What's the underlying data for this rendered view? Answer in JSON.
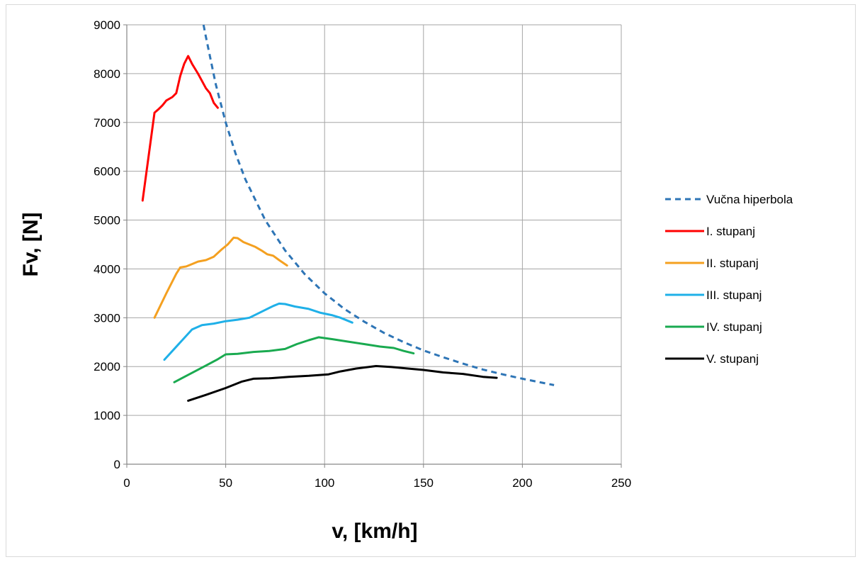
{
  "chart_data": {
    "type": "line",
    "xlabel": "v, [km/h]",
    "ylabel": "Fv, [N]",
    "xlim": [
      0,
      250
    ],
    "ylim": [
      0,
      9000
    ],
    "xticks": [
      "0",
      "50",
      "100",
      "150",
      "200",
      "250"
    ],
    "yticks": [
      "0",
      "1000",
      "2000",
      "3000",
      "4000",
      "5000",
      "6000",
      "7000",
      "8000",
      "9000"
    ],
    "grid": true,
    "legend_position": "right",
    "series": [
      {
        "name": "Vučna hiperbola",
        "color": "#2e75b6",
        "dash": "dashed",
        "points": [
          [
            38.8,
            9000
          ],
          [
            40,
            8750
          ],
          [
            45,
            7780
          ],
          [
            50,
            7000
          ],
          [
            55,
            6360
          ],
          [
            60,
            5830
          ],
          [
            70,
            5000
          ],
          [
            80,
            4380
          ],
          [
            90,
            3890
          ],
          [
            100,
            3500
          ],
          [
            110,
            3180
          ],
          [
            120,
            2920
          ],
          [
            130,
            2690
          ],
          [
            140,
            2500
          ],
          [
            150,
            2330
          ],
          [
            160,
            2190
          ],
          [
            170,
            2060
          ],
          [
            180,
            1940
          ],
          [
            190,
            1840
          ],
          [
            200,
            1750
          ],
          [
            210,
            1670
          ],
          [
            216,
            1620
          ]
        ]
      },
      {
        "name": "I. stupanj",
        "color": "#ff0000",
        "dash": "solid",
        "points": [
          [
            8,
            5400
          ],
          [
            11,
            6300
          ],
          [
            14,
            7200
          ],
          [
            16,
            7270
          ],
          [
            18,
            7350
          ],
          [
            20,
            7450
          ],
          [
            23,
            7520
          ],
          [
            25,
            7600
          ],
          [
            27,
            7950
          ],
          [
            29,
            8200
          ],
          [
            31,
            8360
          ],
          [
            33,
            8200
          ],
          [
            36,
            8000
          ],
          [
            38,
            7850
          ],
          [
            40,
            7700
          ],
          [
            42,
            7600
          ],
          [
            44,
            7400
          ],
          [
            46,
            7300
          ]
        ]
      },
      {
        "name": "II. stupanj",
        "color": "#f4a020",
        "dash": "solid",
        "points": [
          [
            14,
            3000
          ],
          [
            20,
            3500
          ],
          [
            25,
            3900
          ],
          [
            27,
            4030
          ],
          [
            30,
            4050
          ],
          [
            33,
            4100
          ],
          [
            36,
            4150
          ],
          [
            40,
            4180
          ],
          [
            44,
            4250
          ],
          [
            48,
            4400
          ],
          [
            51,
            4500
          ],
          [
            54,
            4640
          ],
          [
            56,
            4630
          ],
          [
            59,
            4550
          ],
          [
            62,
            4500
          ],
          [
            65,
            4450
          ],
          [
            68,
            4380
          ],
          [
            71,
            4300
          ],
          [
            74,
            4270
          ],
          [
            77,
            4180
          ],
          [
            81,
            4070
          ]
        ]
      },
      {
        "name": "III. stupanj",
        "color": "#1fb0e8",
        "dash": "solid",
        "points": [
          [
            19,
            2140
          ],
          [
            26,
            2450
          ],
          [
            33,
            2760
          ],
          [
            38,
            2850
          ],
          [
            44,
            2880
          ],
          [
            50,
            2930
          ],
          [
            56,
            2960
          ],
          [
            62,
            3000
          ],
          [
            66,
            3080
          ],
          [
            70,
            3160
          ],
          [
            74,
            3240
          ],
          [
            77,
            3290
          ],
          [
            80,
            3280
          ],
          [
            85,
            3230
          ],
          [
            92,
            3180
          ],
          [
            98,
            3100
          ],
          [
            104,
            3050
          ],
          [
            108,
            3000
          ],
          [
            114,
            2900
          ]
        ]
      },
      {
        "name": "IV. stupanj",
        "color": "#1aaa50",
        "dash": "solid",
        "points": [
          [
            24,
            1680
          ],
          [
            32,
            1850
          ],
          [
            40,
            2020
          ],
          [
            46,
            2150
          ],
          [
            50,
            2250
          ],
          [
            56,
            2260
          ],
          [
            64,
            2300
          ],
          [
            72,
            2320
          ],
          [
            80,
            2360
          ],
          [
            86,
            2460
          ],
          [
            92,
            2540
          ],
          [
            97,
            2600
          ],
          [
            104,
            2560
          ],
          [
            112,
            2510
          ],
          [
            120,
            2460
          ],
          [
            128,
            2410
          ],
          [
            135,
            2380
          ],
          [
            140,
            2320
          ],
          [
            145,
            2270
          ]
        ]
      },
      {
        "name": "V. stupanj",
        "color": "#000000",
        "dash": "solid",
        "points": [
          [
            31,
            1300
          ],
          [
            40,
            1420
          ],
          [
            50,
            1560
          ],
          [
            58,
            1690
          ],
          [
            64,
            1750
          ],
          [
            72,
            1760
          ],
          [
            82,
            1790
          ],
          [
            92,
            1810
          ],
          [
            102,
            1840
          ],
          [
            108,
            1900
          ],
          [
            116,
            1960
          ],
          [
            126,
            2010
          ],
          [
            134,
            1990
          ],
          [
            142,
            1960
          ],
          [
            150,
            1930
          ],
          [
            160,
            1880
          ],
          [
            170,
            1850
          ],
          [
            180,
            1790
          ],
          [
            187,
            1770
          ]
        ]
      }
    ]
  }
}
